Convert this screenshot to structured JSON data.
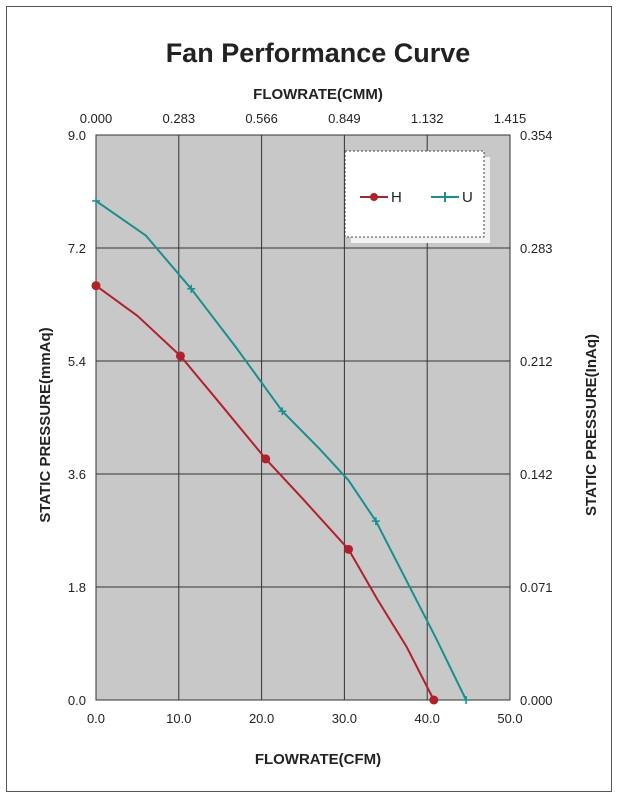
{
  "chart_data": {
    "type": "line",
    "title": "Fan Performance Curve",
    "xlabel": "FLOWRATE(CFM)",
    "x2label": "FLOWRATE(CMM)",
    "ylabel": "STATIC PRESSURE(mmAq)",
    "y2label": "STATIC PRESSURE(InAq)",
    "xlim": [
      0,
      50
    ],
    "ylim": [
      0,
      9
    ],
    "x_ticks": [
      "0.0",
      "10.0",
      "20.0",
      "30.0",
      "40.0",
      "50.0"
    ],
    "x2_ticks": [
      "0.000",
      "0.283",
      "0.566",
      "0.849",
      "1.132",
      "1.415"
    ],
    "y_ticks": [
      "0.0",
      "1.8",
      "3.6",
      "5.4",
      "7.2",
      "9.0"
    ],
    "y2_ticks": [
      "0.000",
      "0.071",
      "0.142",
      "0.212",
      "0.283",
      "0.354"
    ],
    "grid": true,
    "legend_position": "top-right",
    "colors": {
      "plot_bg": "#c8c8c8",
      "grid": "#333333"
    },
    "series": [
      {
        "name": "H",
        "color": "#b3202a",
        "marker": "circle",
        "markers": [
          [
            0,
            6.6
          ],
          [
            10.2,
            5.48
          ],
          [
            20.5,
            3.84
          ],
          [
            30.5,
            2.4
          ],
          [
            40.8,
            0.0
          ]
        ],
        "x": [
          0,
          5,
          10.2,
          15,
          20.5,
          25,
          30.5,
          34,
          37.5,
          40.8
        ],
        "y": [
          6.6,
          6.12,
          5.48,
          4.72,
          3.84,
          3.2,
          2.4,
          1.6,
          0.85,
          0.0
        ]
      },
      {
        "name": "U",
        "color": "#17908f",
        "marker": "plus",
        "markers": [
          [
            0,
            7.95
          ],
          [
            11.5,
            6.55
          ],
          [
            22.5,
            4.6
          ],
          [
            33.8,
            2.85
          ],
          [
            44.7,
            0.0
          ]
        ],
        "x": [
          0,
          6,
          11.5,
          17,
          22.5,
          27,
          30.5,
          33.8,
          37.5,
          41,
          44.7
        ],
        "y": [
          7.95,
          7.4,
          6.55,
          5.6,
          4.6,
          4.0,
          3.5,
          2.85,
          1.9,
          1.0,
          0.0
        ]
      }
    ]
  }
}
